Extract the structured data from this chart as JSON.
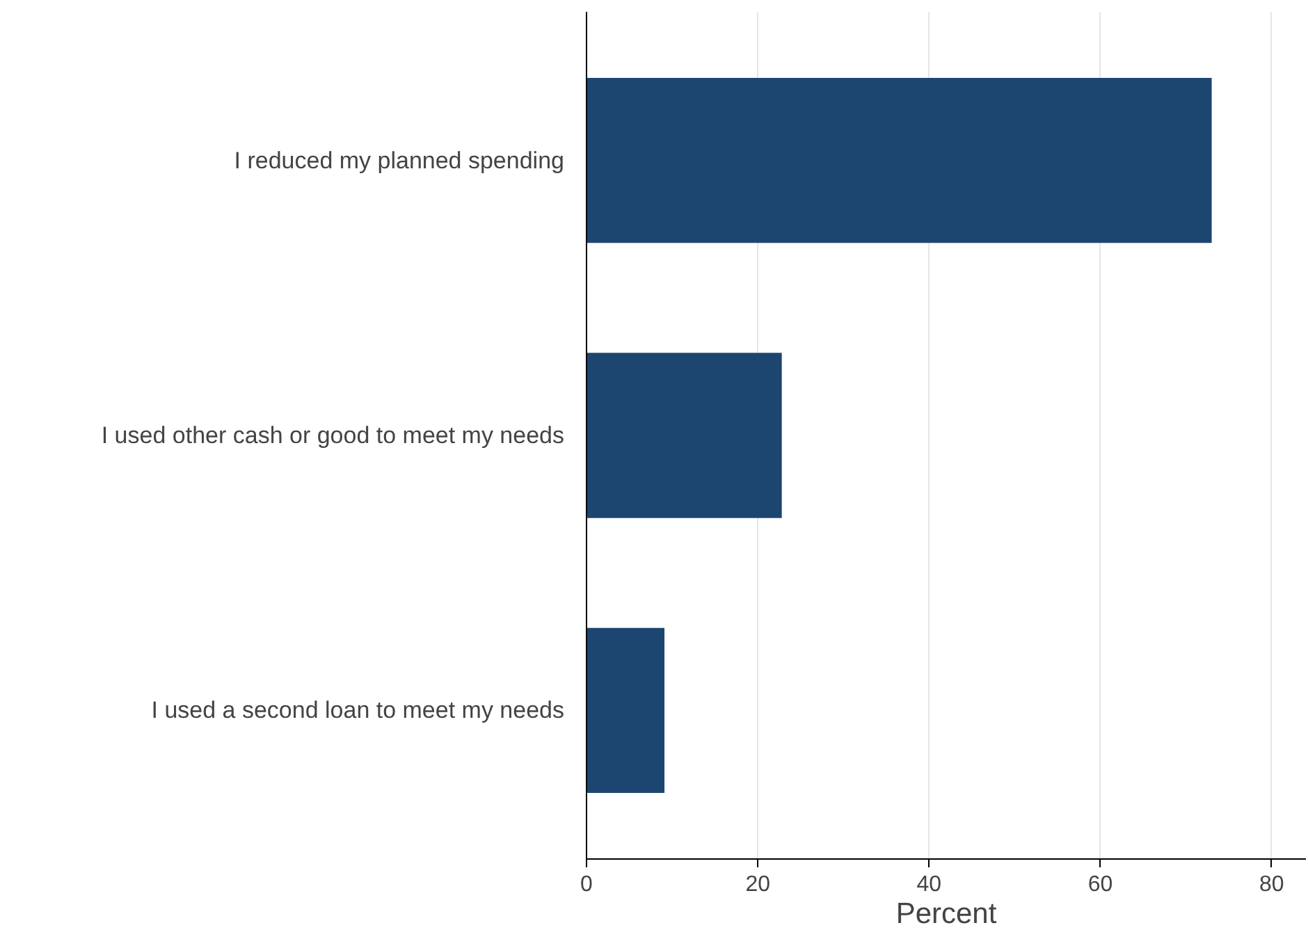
{
  "chart_data": {
    "type": "bar",
    "orientation": "horizontal",
    "categories": [
      "I reduced my planned spending",
      "I used other cash or good to meet my needs",
      "I used a second loan to meet my needs"
    ],
    "values": [
      73.0,
      22.8,
      9.1
    ],
    "color": "#1c4670",
    "xlabel": "Percent",
    "xlim": [
      0,
      84
    ],
    "xticks": [
      0,
      20,
      40,
      60,
      80
    ],
    "grid": "x"
  }
}
